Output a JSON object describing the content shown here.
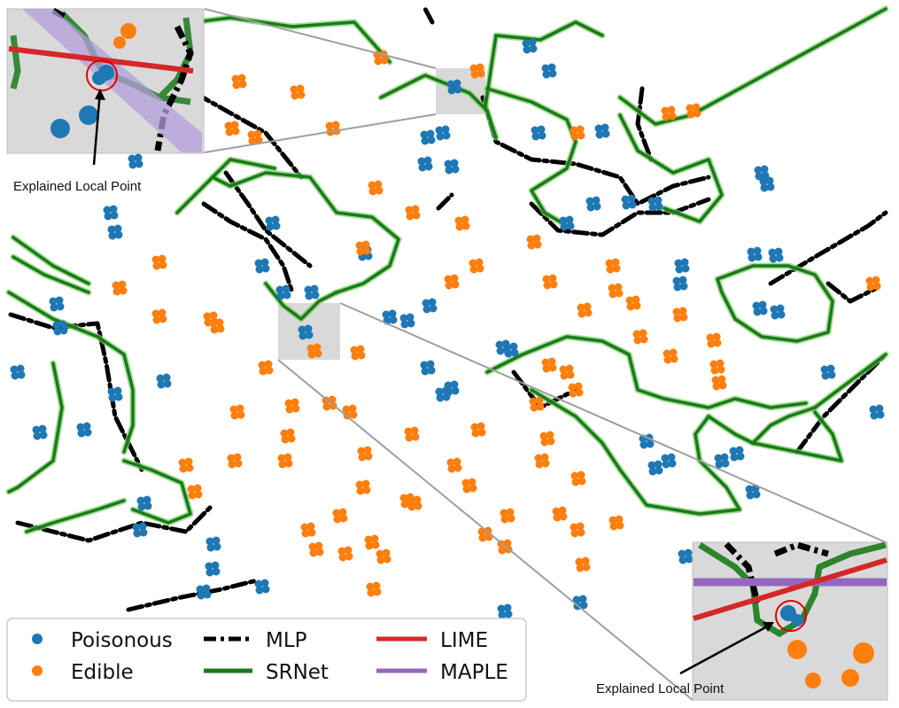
{
  "chart_data": {
    "type": "scatter",
    "title": "",
    "xlabel": "",
    "ylabel": "",
    "grid": false,
    "axes_visible": false,
    "legend_position": "bottom-left",
    "series": [
      {
        "name": "Poisonous",
        "kind": "point",
        "color": "#1f77b4",
        "points": [
          [
            598,
            52
          ],
          [
            513,
            98
          ],
          [
            608,
            150
          ],
          [
            680,
            148
          ],
          [
            483,
            155
          ],
          [
            500,
            150
          ],
          [
            510,
            188
          ],
          [
            480,
            185
          ],
          [
            153,
            182
          ],
          [
            130,
            262
          ],
          [
            125,
            240
          ],
          [
            308,
            252
          ],
          [
            296,
            300
          ],
          [
            320,
            330
          ],
          [
            352,
            330
          ],
          [
            345,
            375
          ],
          [
            440,
            358
          ],
          [
            460,
            362
          ],
          [
            485,
            345
          ],
          [
            412,
            286
          ],
          [
            64,
            343
          ],
          [
            68,
            370
          ],
          [
            20,
            420
          ],
          [
            185,
            430
          ],
          [
            130,
            445
          ],
          [
            45,
            488
          ],
          [
            95,
            485
          ],
          [
            577,
            395
          ],
          [
            568,
            392
          ],
          [
            483,
            415
          ],
          [
            500,
            445
          ],
          [
            510,
            438
          ],
          [
            860,
            195
          ],
          [
            866,
            208
          ],
          [
            852,
            287
          ],
          [
            876,
            288
          ],
          [
            858,
            348
          ],
          [
            878,
            352
          ],
          [
            770,
            300
          ],
          [
            768,
            320
          ],
          [
            935,
            420
          ],
          [
            990,
            465
          ],
          [
            730,
            498
          ],
          [
            755,
            520
          ],
          [
            740,
            528
          ],
          [
            832,
            512
          ],
          [
            850,
            555
          ],
          [
            163,
            568
          ],
          [
            158,
            598
          ],
          [
            241,
            614
          ],
          [
            240,
            642
          ],
          [
            296,
            662
          ],
          [
            230,
            668
          ],
          [
            655,
            680
          ],
          [
            570,
            690
          ],
          [
            740,
            230
          ],
          [
            640,
            252
          ],
          [
            710,
            228
          ],
          [
            670,
            230
          ],
          [
            815,
            520
          ],
          [
            774,
            628
          ],
          [
            620,
            80
          ]
        ]
      },
      {
        "name": "Edible",
        "kind": "point",
        "color": "#ff7f0e",
        "points": [
          [
            145,
            35
          ],
          [
            430,
            65
          ],
          [
            539,
            80
          ],
          [
            270,
            92
          ],
          [
            336,
            104
          ],
          [
            262,
            145
          ],
          [
            288,
            155
          ],
          [
            376,
            145
          ],
          [
            424,
            212
          ],
          [
            466,
            240
          ],
          [
            522,
            252
          ],
          [
            410,
            280
          ],
          [
            510,
            318
          ],
          [
            538,
            300
          ],
          [
            603,
            273
          ],
          [
            621,
            318
          ],
          [
            692,
            300
          ],
          [
            695,
            328
          ],
          [
            660,
            350
          ],
          [
            723,
            380
          ],
          [
            757,
            402
          ],
          [
            768,
            355
          ],
          [
            806,
            384
          ],
          [
            812,
            432
          ],
          [
            715,
            342
          ],
          [
            640,
            420
          ],
          [
            606,
            456
          ],
          [
            650,
            440
          ],
          [
            540,
            485
          ],
          [
            513,
            525
          ],
          [
            465,
            490
          ],
          [
            412,
            512
          ],
          [
            410,
            550
          ],
          [
            460,
            565
          ],
          [
            420,
            612
          ],
          [
            384,
            582
          ],
          [
            348,
            598
          ],
          [
            357,
            620
          ],
          [
            390,
            625
          ],
          [
            422,
            665
          ],
          [
            268,
            465
          ],
          [
            265,
            520
          ],
          [
            322,
            520
          ],
          [
            325,
            492
          ],
          [
            238,
            360
          ],
          [
            245,
            368
          ],
          [
            180,
            357
          ],
          [
            135,
            325
          ],
          [
            180,
            296
          ],
          [
            210,
            525
          ],
          [
            220,
            555
          ],
          [
            300,
            415
          ],
          [
            404,
            398
          ],
          [
            372,
            455
          ],
          [
            395,
            465
          ],
          [
            330,
            458
          ],
          [
            530,
            548
          ],
          [
            573,
            582
          ],
          [
            548,
            603
          ],
          [
            632,
            580
          ],
          [
            652,
            598
          ],
          [
            653,
            540
          ],
          [
            612,
            520
          ],
          [
            618,
            495
          ],
          [
            658,
            637
          ],
          [
            355,
            396
          ],
          [
            468,
            568
          ],
          [
            620,
            412
          ],
          [
            755,
            128
          ],
          [
            783,
            125
          ],
          [
            810,
            414
          ],
          [
            986,
            320
          ],
          [
            433,
            628
          ],
          [
            570,
            617
          ],
          [
            696,
            590
          ],
          [
            652,
            150
          ]
        ]
      },
      {
        "name": "MLP",
        "kind": "decision-boundary",
        "color": "#000000",
        "style": "dash-dot",
        "paths": [
          "M 105 20 L 190 60 L 220 105 L 300 150 L 340 200",
          "M 255 195 L 280 230 L 300 260 L 350 300",
          "M 488 25 L 480 10",
          "M 230 230 L 260 250 L 300 270 L 320 300 L 330 330",
          "M 545 110 L 560 160 L 600 180 L 650 185 L 700 200 L 720 230 L 760 210 L 800 200",
          "M 600 230 L 630 260 L 680 265 L 720 240 L 760 240 L 800 225",
          "M 725 100 L 720 140 L 735 180",
          "M 12 355 L 60 370 L 110 365 L 120 410 L 130 470 L 160 530",
          "M 580 420 L 610 460 L 650 440",
          "M 870 320 L 920 290 L 980 255 L 1000 240",
          "M 900 510 L 930 470 L 970 430 L 1000 400",
          "M 20 590 L 100 610 L 160 590 L 210 600 L 240 570",
          "M 145 688 L 200 675 L 250 665 L 290 655",
          "M 935 320 L 960 340 L 990 325",
          "M 495 235 L 510 220"
        ]
      },
      {
        "name": "SRNet",
        "kind": "decision-boundary",
        "color": "#1a7a1a",
        "style": "solid",
        "paths": [
          "M 220 25 L 260 20 L 330 30 L 400 25 L 440 70",
          "M 430 110 L 480 85 L 530 105 L 550 125 L 560 155",
          "M 548 120 L 560 40 L 610 45 L 650 25 L 680 40",
          "M 550 100 L 600 115 L 640 135 L 650 160 L 640 190 L 600 215 L 615 240 L 640 255",
          "M 700 110 L 740 140 L 780 130 L 1000 10",
          "M 700 130 L 720 170 L 760 195 L 800 180 L 815 220 L 790 250 L 750 235",
          "M 200 240 L 240 200 L 260 210 L 300 195 L 350 200 L 380 240 L 420 245 L 450 270 L 440 300 L 410 320 L 380 330",
          "M 300 320 L 320 345 L 340 360 L 360 340 L 380 330",
          "M 240 200 L 260 180 L 310 190",
          "M 15 268 L 60 300 L 100 320",
          "M 15 290 L 50 310 L 100 330",
          "M 10 330 L 60 360 L 110 380 L 140 400 L 150 440 L 150 480 L 140 510",
          "M 60 410 L 70 460 L 60 520 L 20 550 L 10 555",
          "M 140 520 L 170 530 L 205 545 L 215 580 L 190 590 L 150 575",
          "M 30 600 L 60 590 L 110 575 L 140 565",
          "M 810 315 L 850 300 L 890 300 L 920 310 L 940 340 L 935 375 L 900 385 L 860 380 L 830 360 L 815 330 L 810 315",
          "M 550 420 L 590 400 L 640 380 L 680 385 L 710 400 L 720 440 L 750 450 L 800 460 L 830 450 L 870 460 L 910 455",
          "M 600 440 L 650 470 L 680 500 L 700 530 L 730 570 L 790 580 L 835 575 L 820 550 L 790 520 L 785 490 L 800 470",
          "M 800 470 L 830 490 L 850 500 L 870 480 L 890 470 L 920 460",
          "M 850 500 L 900 510 L 950 520 L 940 490 L 920 465",
          "M 920 460 L 960 430 L 1000 400"
        ]
      },
      {
        "name": "LIME",
        "kind": "local-linear-explainer",
        "color": "#d62728",
        "style": "solid"
      },
      {
        "name": "MAPLE",
        "kind": "local-linear-explainer",
        "color": "#9467bd",
        "style": "solid"
      }
    ],
    "annotations": [
      {
        "text": "Explained Local Point",
        "target": "top-left inset"
      },
      {
        "text": "Explained Local Point",
        "target": "bottom-right inset"
      }
    ]
  },
  "legend": {
    "items": [
      {
        "label": "Poisonous",
        "color": "#1f77b4",
        "marker": "dot"
      },
      {
        "label": "Edible",
        "color": "#ff7f0e",
        "marker": "dot"
      },
      {
        "label": "MLP",
        "color": "#000000",
        "marker": "dash-dot"
      },
      {
        "label": "SRNet",
        "color": "#1a7a1a",
        "marker": "line"
      },
      {
        "label": "LIME",
        "color": "#d62728",
        "marker": "line"
      },
      {
        "label": "MAPLE",
        "color": "#9467bd",
        "marker": "line"
      }
    ]
  },
  "callouts": {
    "top_left_label": "Explained Local Point",
    "bottom_right_label": "Explained Local Point"
  }
}
